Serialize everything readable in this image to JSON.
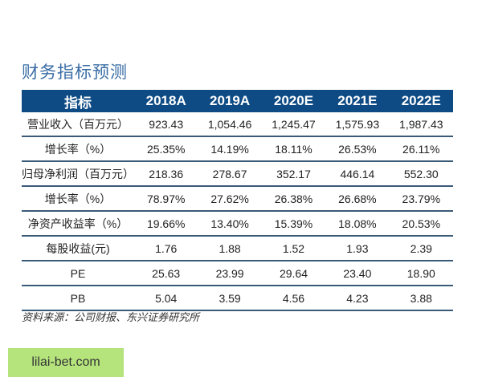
{
  "title": "财务指标预测",
  "table": {
    "headers": [
      "指标",
      "2018A",
      "2019A",
      "2020E",
      "2021E",
      "2022E"
    ],
    "rows": [
      [
        "营业收入（百万元）",
        "923.43",
        "1,054.46",
        "1,245.47",
        "1,575.93",
        "1,987.43"
      ],
      [
        "增长率（%）",
        "25.35%",
        "14.19%",
        "18.11%",
        "26.53%",
        "26.11%"
      ],
      [
        "归母净利润（百万元）",
        "218.36",
        "278.67",
        "352.17",
        "446.14",
        "552.30"
      ],
      [
        "增长率（%）",
        "78.97%",
        "27.62%",
        "26.38%",
        "26.68%",
        "23.79%"
      ],
      [
        "净资产收益率（%）",
        "19.66%",
        "13.40%",
        "15.39%",
        "18.08%",
        "20.53%"
      ],
      [
        "每股收益(元)",
        "1.76",
        "1.88",
        "1.52",
        "1.93",
        "2.39"
      ],
      [
        "PE",
        "25.63",
        "23.99",
        "29.64",
        "23.40",
        "18.90"
      ],
      [
        "PB",
        "5.04",
        "3.59",
        "4.56",
        "4.23",
        "3.88"
      ]
    ]
  },
  "source": "资料来源：公司财报、东兴证券研究所",
  "watermark": "lilai-bet.com",
  "colors": {
    "header_bg": "#0e4b84",
    "title": "#3a6da5",
    "watermark_bg": "#b5e47d"
  }
}
